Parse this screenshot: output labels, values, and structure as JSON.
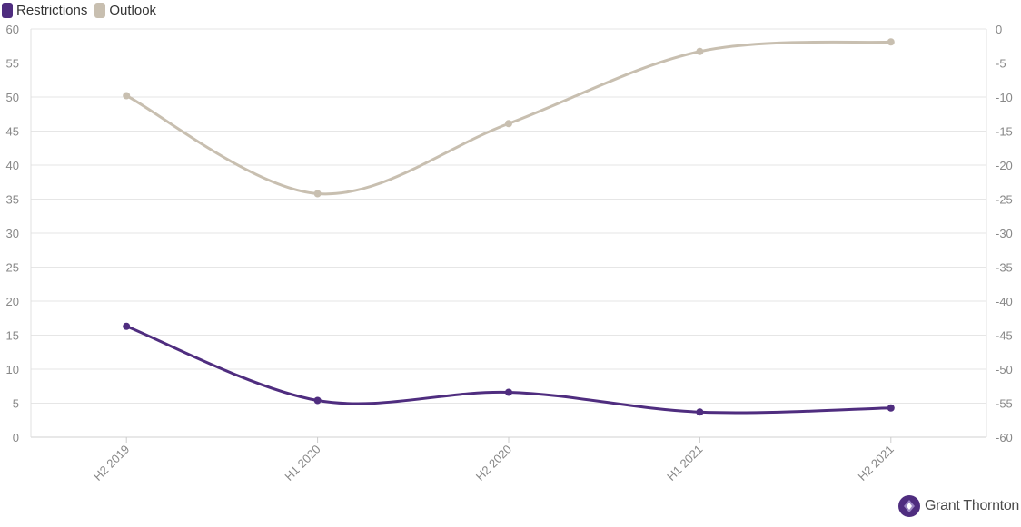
{
  "colors": {
    "restrictions": "#4f2d7f",
    "outlook": "#c8bfb0",
    "grid": "#e6e6e6",
    "axis_text": "#888888"
  },
  "legend": {
    "placement": "top-left"
  },
  "logo": {
    "text": "Grant Thornton",
    "icon": "grant-thornton-logo-icon"
  },
  "chart_data": {
    "type": "line",
    "categories": [
      "H2 2019",
      "H1 2020",
      "H2 2020",
      "H1 2021",
      "H2 2021"
    ],
    "series": [
      {
        "name": "Restrictions",
        "axis": "left",
        "values": [
          16.3,
          5.4,
          6.6,
          3.7,
          4.3
        ]
      },
      {
        "name": "Outlook",
        "axis": "right",
        "values": [
          -9.8,
          -24.2,
          -13.9,
          -3.3,
          -1.9
        ]
      }
    ],
    "y_left": {
      "min": 0,
      "max": 60,
      "step": 5
    },
    "y_right": {
      "min": -60,
      "max": 0,
      "step": 5
    },
    "grid": true,
    "smooth": true
  }
}
